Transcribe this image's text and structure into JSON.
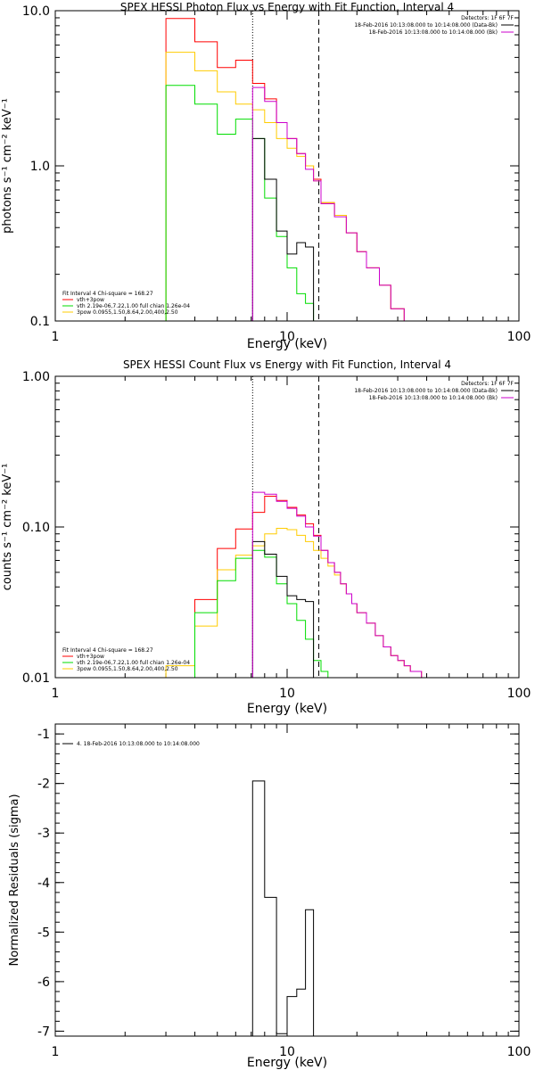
{
  "chart_data": [
    {
      "type": "line",
      "title": "SPEX HESSI Photon Flux vs Energy with Fit Function, Interval 4",
      "xlabel": "Energy (keV)",
      "ylabel": "photons s⁻¹ cm⁻² keV⁻¹",
      "xscale": "log",
      "yscale": "log",
      "xlim": [
        1,
        100
      ],
      "ylim": [
        0.1,
        10
      ],
      "xticks": [
        {
          "v": 1,
          "label": "1"
        },
        {
          "v": 10,
          "label": "10"
        },
        {
          "v": 100,
          "label": "100"
        }
      ],
      "yticks": [
        {
          "v": 0.1,
          "label": "0.1"
        },
        {
          "v": 1,
          "label": "1.0"
        },
        {
          "v": 10,
          "label": "10.0"
        }
      ],
      "vlines": [
        {
          "x": 7.1,
          "style": "dotted"
        },
        {
          "x": 13.7,
          "style": "dashed"
        }
      ],
      "legend_right": [
        {
          "text": "Detectors: 1F 6F 7F",
          "color": "#000000",
          "line": false
        },
        {
          "text": "18-Feb-2016 10:13:08.000 to 10:14:08.000 (Data-Bk)",
          "color": "#000000",
          "line": true
        },
        {
          "text": "18-Feb-2016 10:13:08.000 to 10:14:08.000 (Bk)",
          "color": "#cc00cc",
          "line": true
        }
      ],
      "legend_left": [
        {
          "text": "Fit Interval  4    Chi-square = 168.27",
          "color": "#000000",
          "line": false
        },
        {
          "text": "vth+3pow",
          "color": "#ff0000",
          "line": true
        },
        {
          "text": "vth 2.19e-06,7.22,1.00  full chian 1.26e-04",
          "color": "#00dd00",
          "line": true
        },
        {
          "text": "3pow 0.0955,1.50,8.64,2.00,400,2.50",
          "color": "#ffcc00",
          "line": true
        }
      ],
      "series": [
        {
          "color": "#ff0000",
          "edges": [
            3,
            4,
            5,
            6,
            7.1,
            8,
            9,
            10,
            11,
            12,
            13,
            14,
            16,
            18,
            20,
            22,
            25,
            28,
            32
          ],
          "values": [
            8.9,
            6.3,
            4.3,
            4.8,
            3.4,
            2.7,
            1.9,
            1.5,
            1.2,
            1.0,
            0.82,
            0.58,
            0.48,
            0.37,
            0.28,
            0.22,
            0.17,
            0.12
          ]
        },
        {
          "color": "#ffcc00",
          "edges": [
            3,
            4,
            5,
            6,
            7.1,
            8,
            9,
            10,
            11,
            12,
            13,
            14,
            16,
            18,
            20,
            22,
            25,
            28,
            32
          ],
          "values": [
            5.4,
            4.1,
            3.0,
            2.5,
            2.3,
            1.9,
            1.5,
            1.3,
            1.15,
            1.0,
            0.8,
            0.58,
            0.48,
            0.37,
            0.28,
            0.22,
            0.17,
            0.12
          ]
        },
        {
          "color": "#00dd00",
          "edges": [
            3,
            4,
            5,
            6,
            7.1,
            8,
            9,
            10,
            11,
            12,
            13,
            14,
            15
          ],
          "values": [
            3.3,
            2.5,
            1.6,
            2.0,
            1.5,
            0.62,
            0.35,
            0.22,
            0.15,
            0.13,
            0.1,
            0.06
          ]
        },
        {
          "color": "#000000",
          "edges": [
            7.1,
            8,
            9,
            10,
            11,
            12,
            13,
            14
          ],
          "values": [
            1.5,
            0.82,
            0.38,
            0.27,
            0.32,
            0.3,
            0.05
          ]
        },
        {
          "color": "#cc00cc",
          "edges": [
            7.1,
            8,
            9,
            10,
            11,
            12,
            13,
            14,
            16,
            18,
            20,
            22,
            25,
            28,
            32
          ],
          "values": [
            3.2,
            2.6,
            1.9,
            1.5,
            1.2,
            0.95,
            0.8,
            0.57,
            0.47,
            0.37,
            0.28,
            0.22,
            0.17,
            0.12
          ]
        }
      ]
    },
    {
      "type": "line",
      "title": "SPEX HESSI Count Flux vs Energy with Fit Function, Interval 4",
      "xlabel": "Energy (keV)",
      "ylabel": "counts s⁻¹ cm⁻² keV⁻¹",
      "xscale": "log",
      "yscale": "log",
      "xlim": [
        1,
        100
      ],
      "ylim": [
        0.01,
        1
      ],
      "xticks": [
        {
          "v": 1,
          "label": "1"
        },
        {
          "v": 10,
          "label": "10"
        },
        {
          "v": 100,
          "label": "100"
        }
      ],
      "yticks": [
        {
          "v": 0.01,
          "label": "0.01"
        },
        {
          "v": 0.1,
          "label": "0.10"
        },
        {
          "v": 1,
          "label": "1.00"
        }
      ],
      "vlines": [
        {
          "x": 7.1,
          "style": "dotted"
        },
        {
          "x": 13.7,
          "style": "dashed"
        }
      ],
      "legend_right": [
        {
          "text": "Detectors: 1F 6F 7F",
          "color": "#000000",
          "line": false
        },
        {
          "text": "18-Feb-2016 10:13:08.000 to 10:14:08.000 (Data-Bk)",
          "color": "#000000",
          "line": true
        },
        {
          "text": "18-Feb-2016 10:13:08.000 to 10:14:08.000 (Bk)",
          "color": "#cc00cc",
          "line": true
        }
      ],
      "legend_left": [
        {
          "text": "Fit Interval  4    Chi-square = 168.27",
          "color": "#000000",
          "line": false
        },
        {
          "text": "vth+3pow",
          "color": "#ff0000",
          "line": true
        },
        {
          "text": "vth 2.19e-06,7.22,1.00  full chian 1.26e-04",
          "color": "#00dd00",
          "line": true
        },
        {
          "text": "3pow 0.0955,1.50,8.64,2.00,400,2.50",
          "color": "#ffcc00",
          "line": true
        }
      ],
      "series": [
        {
          "color": "#ff0000",
          "edges": [
            4,
            5,
            6,
            7.1,
            8,
            9,
            10,
            11,
            12,
            13,
            14,
            15,
            16,
            17,
            18,
            19,
            20,
            22,
            24,
            26,
            28,
            30,
            32,
            34,
            36,
            38,
            40
          ],
          "values": [
            0.033,
            0.072,
            0.097,
            0.125,
            0.16,
            0.15,
            0.135,
            0.12,
            0.105,
            0.088,
            0.07,
            0.058,
            0.05,
            0.042,
            0.036,
            0.031,
            0.027,
            0.023,
            0.019,
            0.016,
            0.014,
            0.013,
            0.012,
            0.011,
            0.011,
            0.01
          ]
        },
        {
          "color": "#ffcc00",
          "edges": [
            3,
            4,
            5,
            6,
            7.1,
            8,
            9,
            10,
            11,
            12,
            13,
            14,
            15,
            16,
            17,
            18,
            19,
            20,
            22,
            24,
            26,
            28,
            30,
            32,
            34,
            36,
            38,
            40
          ],
          "values": [
            0.012,
            0.022,
            0.052,
            0.065,
            0.075,
            0.09,
            0.098,
            0.096,
            0.088,
            0.08,
            0.07,
            0.062,
            0.055,
            0.048,
            0.042,
            0.036,
            0.031,
            0.027,
            0.023,
            0.019,
            0.016,
            0.014,
            0.013,
            0.012,
            0.011,
            0.011,
            0.01
          ]
        },
        {
          "color": "#00dd00",
          "edges": [
            4,
            5,
            6,
            7.1,
            8,
            9,
            10,
            11,
            12,
            13,
            14,
            15
          ],
          "values": [
            0.027,
            0.044,
            0.062,
            0.07,
            0.063,
            0.042,
            0.031,
            0.024,
            0.018,
            0.013,
            0.011
          ]
        },
        {
          "color": "#000000",
          "edges": [
            7.1,
            8,
            9,
            10,
            11,
            12,
            13,
            14
          ],
          "values": [
            0.08,
            0.066,
            0.047,
            0.035,
            0.033,
            0.032,
            0.01
          ]
        },
        {
          "color": "#cc00cc",
          "edges": [
            7.1,
            8,
            9,
            10,
            11,
            12,
            13,
            14,
            15,
            16,
            17,
            18,
            19,
            20,
            22,
            24,
            26,
            28,
            30,
            32,
            34,
            36,
            38,
            40
          ],
          "values": [
            0.17,
            0.165,
            0.148,
            0.133,
            0.118,
            0.1,
            0.087,
            0.07,
            0.058,
            0.05,
            0.042,
            0.036,
            0.031,
            0.027,
            0.023,
            0.019,
            0.016,
            0.014,
            0.013,
            0.012,
            0.011,
            0.011,
            0.01
          ]
        }
      ]
    },
    {
      "type": "line",
      "title": "",
      "xlabel": "Energy (keV)",
      "ylabel": "Normalized Residuals (sigma)",
      "xscale": "log",
      "yscale": "linear",
      "xlim": [
        1,
        100
      ],
      "ylim": [
        -7.1,
        -0.8
      ],
      "xticks": [
        {
          "v": 1,
          "label": "1"
        },
        {
          "v": 10,
          "label": "10"
        },
        {
          "v": 100,
          "label": "100"
        }
      ],
      "yticks": [
        {
          "v": -1,
          "label": "-1"
        },
        {
          "v": -2,
          "label": "-2"
        },
        {
          "v": -3,
          "label": "-3"
        },
        {
          "v": -4,
          "label": "-4"
        },
        {
          "v": -5,
          "label": "-5"
        },
        {
          "v": -6,
          "label": "-6"
        },
        {
          "v": -7,
          "label": "-7"
        }
      ],
      "vlines": [],
      "legend_right": [],
      "legend_left": [
        {
          "text": "4. 18-Feb-2016 10:13:08.000 to 10:14:08.000",
          "color": "#000000",
          "line": true
        }
      ],
      "series": [
        {
          "color": "#000000",
          "edges": [
            7.1,
            8,
            9,
            10,
            11,
            12,
            13,
            14
          ],
          "values": [
            -1.95,
            -4.3,
            -7.05,
            -6.3,
            -6.15,
            -4.55,
            -7.1
          ]
        }
      ]
    }
  ]
}
